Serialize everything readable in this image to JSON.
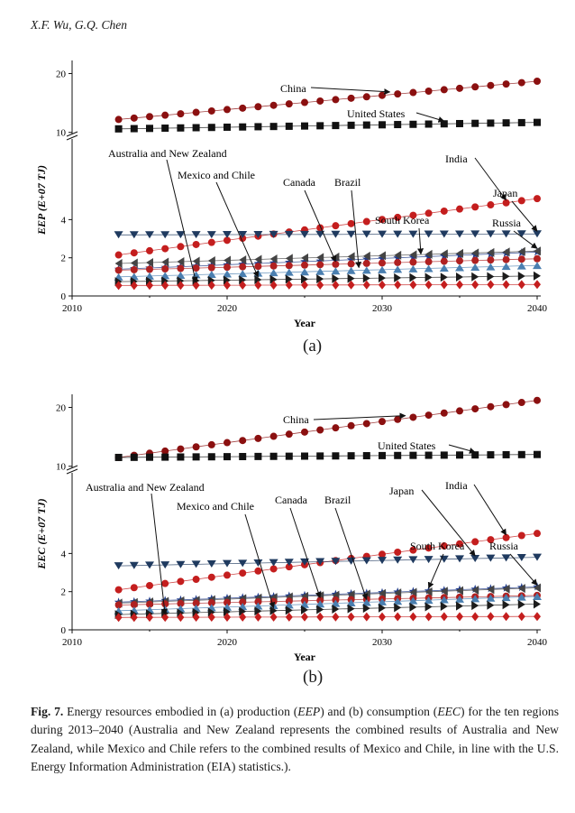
{
  "header": {
    "authors": "X.F. Wu, G.Q. Chen"
  },
  "panels": [
    {
      "id": "a",
      "label": "(a)"
    },
    {
      "id": "b",
      "label": "(b)"
    }
  ],
  "caption": {
    "fig": "Fig. 7.",
    "t1": " Energy resources embodied in (a) production (",
    "i1": "EEP",
    "t2": ") and (b) consumption (",
    "i2": "EEC",
    "t3": ") for the ten regions during 2013–2040 (Australia and New Zealand represents the combined results of Australia and New Zealand, while Mexico and Chile refers to the combined results of Mexico and Chile, in line with the U.S. Energy Information Administration (EIA) statistics.)."
  },
  "colors": {
    "china": "#8b1010",
    "united_states": "#111111",
    "india": "#c41e1e",
    "japan": "#1f3a5f",
    "south_korea": "#1e3a8a",
    "russia": "#444444",
    "canada": "#b02020",
    "brazil": "#4a7fb0",
    "mexico_chile": "#1c1c1c",
    "australia_nz": "#c41e1e"
  },
  "chart_data": [
    {
      "type": "line",
      "panel": "a",
      "ylabel": "EEP (E+07 TJ)",
      "xlabel": "Year",
      "x_ticks": [
        "2010",
        "2020",
        "2030",
        "2040"
      ],
      "y_ticks_lower": [
        "0",
        "2",
        "4"
      ],
      "y_ticks_upper": [
        "10",
        "20"
      ],
      "xlim": [
        2010,
        2040
      ],
      "ylim_lower": [
        0,
        5.2
      ],
      "ylim_upper": [
        9.5,
        21
      ],
      "axis_break": true,
      "x": [
        2013,
        2014,
        2015,
        2016,
        2017,
        2018,
        2019,
        2020,
        2021,
        2022,
        2023,
        2024,
        2025,
        2026,
        2027,
        2028,
        2029,
        2030,
        2031,
        2032,
        2033,
        2034,
        2035,
        2036,
        2037,
        2038,
        2039,
        2040
      ],
      "series": [
        {
          "name": "China",
          "key": "china",
          "marker": "circle",
          "start": 12.2,
          "end": 18.7
        },
        {
          "name": "United States",
          "key": "united_states",
          "marker": "square",
          "start": 10.6,
          "end": 11.7
        },
        {
          "name": "India",
          "key": "india",
          "marker": "circle",
          "start": 2.15,
          "end": 5.1
        },
        {
          "name": "Japan",
          "key": "japan",
          "marker": "tri-down",
          "start": 3.2,
          "end": 3.25
        },
        {
          "name": "South Korea",
          "key": "south_korea",
          "marker": "star",
          "start": 1.4,
          "end": 2.3
        },
        {
          "name": "Russia",
          "key": "russia",
          "marker": "tri-left",
          "start": 1.7,
          "end": 2.35
        },
        {
          "name": "Canada",
          "key": "canada",
          "marker": "circle",
          "start": 1.35,
          "end": 1.95
        },
        {
          "name": "Brazil",
          "key": "brazil",
          "marker": "tri-up",
          "start": 1.0,
          "end": 1.6
        },
        {
          "name": "Mexico and Chile",
          "key": "mexico_chile",
          "marker": "tri-right",
          "start": 0.75,
          "end": 1.05
        },
        {
          "name": "Australia and New Zealand",
          "key": "australia_nz",
          "marker": "diamond",
          "start": 0.55,
          "end": 0.6
        }
      ]
    },
    {
      "type": "line",
      "panel": "b",
      "ylabel": "EEC (E+07 TJ)",
      "xlabel": "Year",
      "x_ticks": [
        "2010",
        "2020",
        "2030",
        "2040"
      ],
      "y_ticks_lower": [
        "0",
        "2",
        "4"
      ],
      "y_ticks_upper": [
        "10",
        "20"
      ],
      "xlim": [
        2010,
        2040
      ],
      "ylim_lower": [
        0,
        5.2
      ],
      "ylim_upper": [
        9.5,
        21
      ],
      "axis_break": true,
      "x": [
        2013,
        2014,
        2015,
        2016,
        2017,
        2018,
        2019,
        2020,
        2021,
        2022,
        2023,
        2024,
        2025,
        2026,
        2027,
        2028,
        2029,
        2030,
        2031,
        2032,
        2033,
        2034,
        2035,
        2036,
        2037,
        2038,
        2039,
        2040
      ],
      "series": [
        {
          "name": "China",
          "key": "china",
          "marker": "circle",
          "start": 11.5,
          "end": 21.2
        },
        {
          "name": "United States",
          "key": "united_states",
          "marker": "square",
          "start": 11.5,
          "end": 12.0
        },
        {
          "name": "India",
          "key": "india",
          "marker": "circle",
          "start": 2.1,
          "end": 5.05
        },
        {
          "name": "Japan",
          "key": "japan",
          "marker": "tri-down",
          "start": 3.35,
          "end": 3.8
        },
        {
          "name": "South Korea",
          "key": "south_korea",
          "marker": "star",
          "start": 1.45,
          "end": 2.25
        },
        {
          "name": "Russia",
          "key": "russia",
          "marker": "tri-left",
          "start": 1.4,
          "end": 2.2
        },
        {
          "name": "Canada",
          "key": "canada",
          "marker": "circle",
          "start": 1.3,
          "end": 1.8
        },
        {
          "name": "Brazil",
          "key": "brazil",
          "marker": "tri-up",
          "start": 1.0,
          "end": 1.75
        },
        {
          "name": "Mexico and Chile",
          "key": "mexico_chile",
          "marker": "tri-right",
          "start": 0.8,
          "end": 1.35
        },
        {
          "name": "Australia and New Zealand",
          "key": "australia_nz",
          "marker": "diamond",
          "start": 0.65,
          "end": 0.7
        }
      ]
    }
  ]
}
